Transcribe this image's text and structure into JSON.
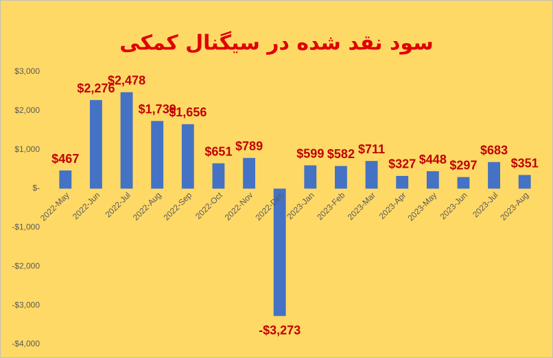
{
  "chart_data": {
    "type": "bar",
    "title": "سود نقد شده در سیگنال کمکی",
    "categories": [
      "2022-May",
      "2022-Jun",
      "2022-Jul",
      "2022-Aug",
      "2022-Sep",
      "2022-Oct",
      "2022-Nov",
      "2022-Dec",
      "2023-Jan",
      "2023-Feb",
      "2023-Mar",
      "2023-Apr",
      "2023-May",
      "2023-Jun",
      "2023-Jul",
      "2023-Aug"
    ],
    "values": [
      467,
      2276,
      2478,
      1739,
      1656,
      651,
      789,
      -3273,
      599,
      582,
      711,
      327,
      448,
      297,
      683,
      351
    ],
    "value_labels": [
      "$467",
      "$2,276",
      "$2,478",
      "$1,739",
      "$1,656",
      "$651",
      "$789",
      "-$3,273",
      "$599",
      "$582",
      "$711",
      "$327",
      "$448",
      "$297",
      "$683",
      "$351"
    ],
    "color": "#4472C4",
    "ylim": [
      -4000,
      3000
    ],
    "yticks": [
      {
        "value": -4000,
        "label": "-$4,000"
      },
      {
        "value": -3000,
        "label": "-$3,000"
      },
      {
        "value": -2000,
        "label": "-$2,000"
      },
      {
        "value": -1000,
        "label": "-$1,000"
      },
      {
        "value": 0,
        "label": "$-"
      },
      {
        "value": 1000,
        "label": "$1,000"
      },
      {
        "value": 2000,
        "label": "$2,000"
      },
      {
        "value": 3000,
        "label": "$3,000"
      }
    ],
    "grid": false
  }
}
